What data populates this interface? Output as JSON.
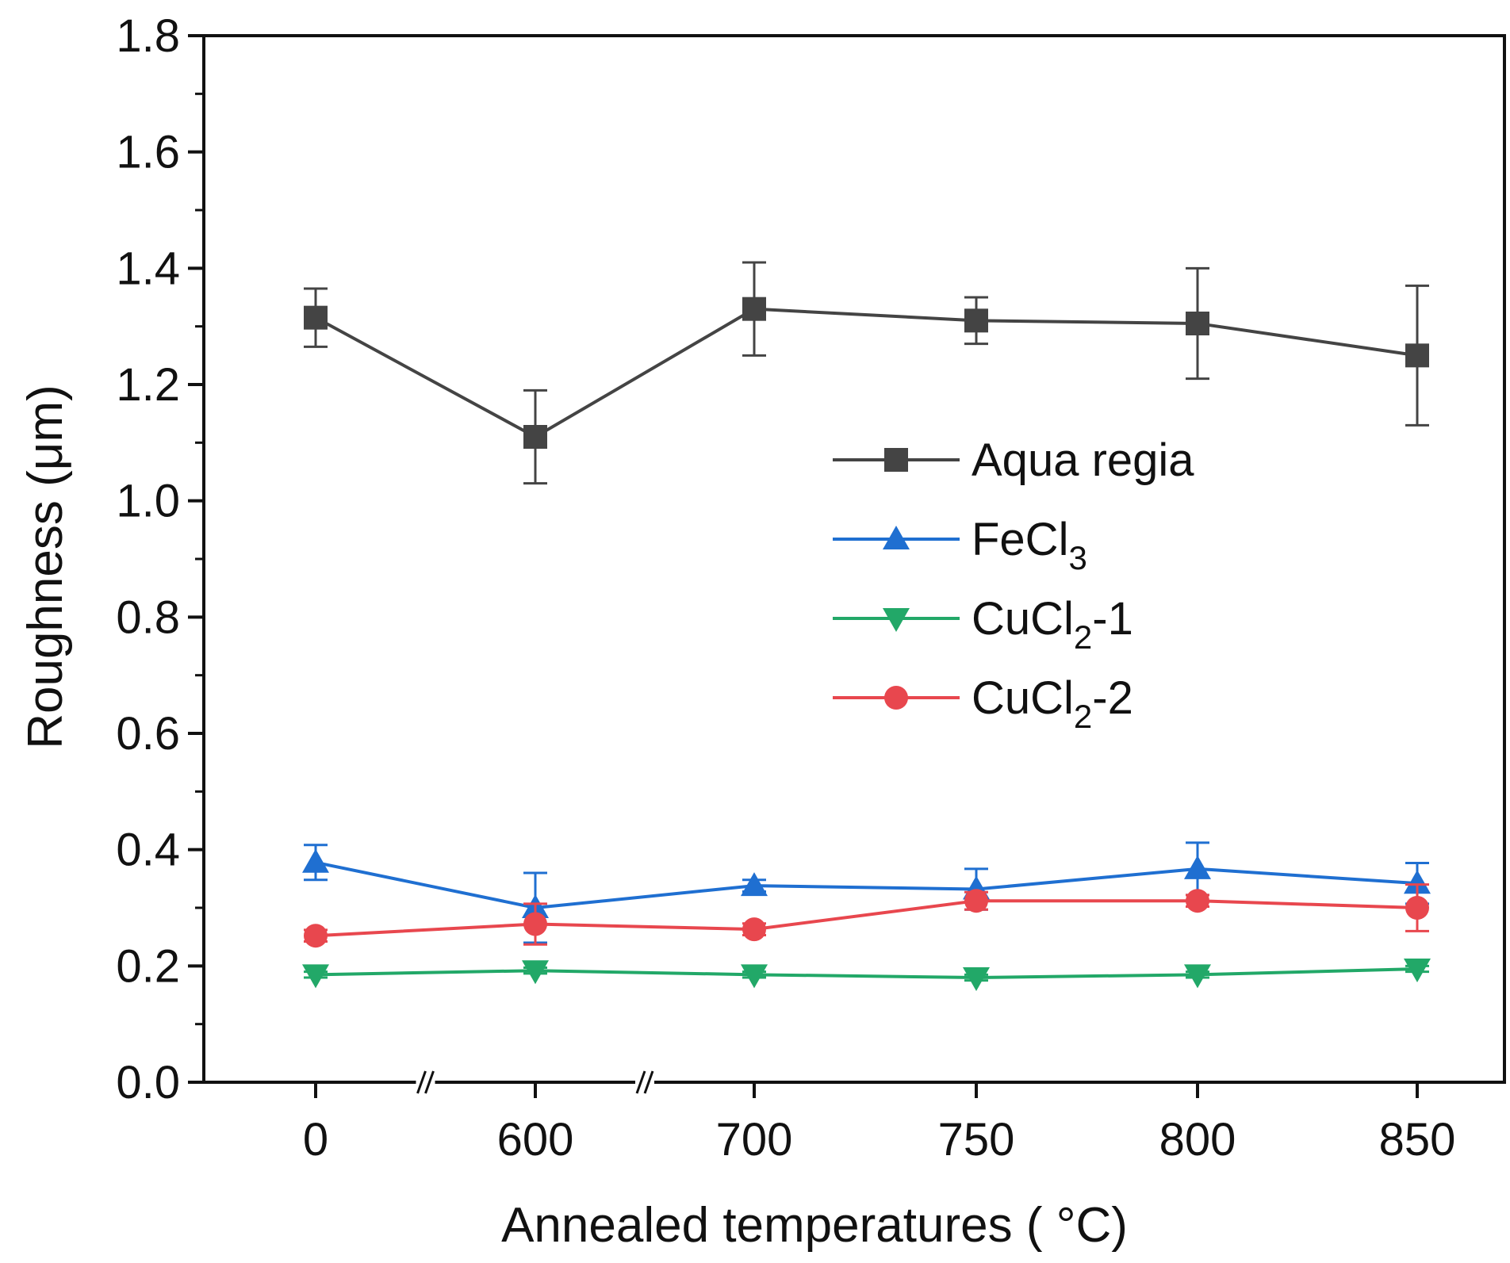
{
  "chart_data": {
    "type": "line",
    "title": "",
    "xlabel": "Annealed temperatures ( °C)",
    "ylabel": "Roughness (μm)",
    "categories": [
      "0",
      "600",
      "700",
      "750",
      "800",
      "850"
    ],
    "axis_breaks_after": [
      "0",
      "600"
    ],
    "ylim": [
      0.0,
      1.8
    ],
    "yticks": [
      "0.0",
      "0.2",
      "0.4",
      "0.6",
      "0.8",
      "1.0",
      "1.2",
      "1.4",
      "1.6",
      "1.8"
    ],
    "legend_position": "center-right",
    "series": [
      {
        "name": "Aqua regia",
        "label_main": "Aqua regia",
        "label_sub": "",
        "label_tail": "",
        "color": "#444444",
        "marker": "square",
        "values": [
          1.315,
          1.11,
          1.33,
          1.31,
          1.305,
          1.25
        ],
        "errors": [
          0.05,
          0.08,
          0.08,
          0.04,
          0.095,
          0.12
        ]
      },
      {
        "name": "FeCl3",
        "label_main": "FeCl",
        "label_sub": "3",
        "label_tail": "",
        "color": "#1f6fd1",
        "marker": "triangle-up",
        "values": [
          0.378,
          0.3,
          0.338,
          0.332,
          0.367,
          0.342
        ],
        "errors": [
          0.03,
          0.06,
          0.01,
          0.035,
          0.045,
          0.035
        ]
      },
      {
        "name": "CuCl2-1",
        "label_main": "CuCl",
        "label_sub": "2",
        "label_tail": "-1",
        "color": "#22a868",
        "marker": "triangle-down",
        "values": [
          0.185,
          0.192,
          0.185,
          0.18,
          0.185,
          0.195
        ],
        "errors": [
          0.005,
          0.005,
          0.005,
          0.005,
          0.005,
          0.005
        ]
      },
      {
        "name": "CuCl2-2",
        "label_main": "CuCl",
        "label_sub": "2",
        "label_tail": "-2",
        "color": "#e8474e",
        "marker": "circle",
        "values": [
          0.252,
          0.272,
          0.263,
          0.312,
          0.312,
          0.3
        ],
        "errors": [
          0.01,
          0.035,
          0.01,
          0.015,
          0.01,
          0.04
        ]
      }
    ]
  }
}
